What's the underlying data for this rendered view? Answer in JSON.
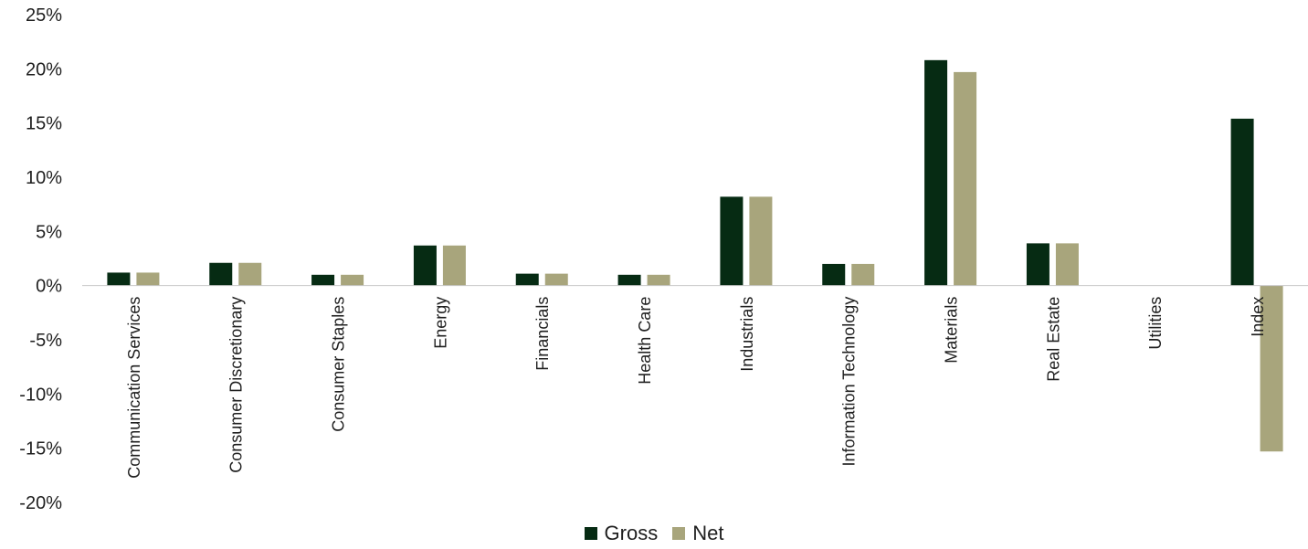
{
  "chart_data": {
    "type": "bar",
    "categories": [
      "Communication Services",
      "Consumer Discretionary",
      "Consumer Staples",
      "Energy",
      "Financials",
      "Health Care",
      "Industrials",
      "Information Technology",
      "Materials",
      "Real Estate",
      "Utilities",
      "Index"
    ],
    "series": [
      {
        "name": "Gross",
        "color": "#062b13",
        "values": [
          1.2,
          2.1,
          1.0,
          3.7,
          1.1,
          1.0,
          8.2,
          2.0,
          20.8,
          3.9,
          0,
          15.4
        ]
      },
      {
        "name": "Net",
        "color": "#a8a57c",
        "values": [
          1.2,
          2.1,
          1.0,
          3.7,
          1.1,
          1.0,
          8.2,
          2.0,
          19.7,
          3.9,
          0,
          -15.3
        ]
      }
    ],
    "title": "",
    "xlabel": "",
    "ylabel": "",
    "ylim": [
      -20,
      25
    ],
    "y_ticks": [
      "25%",
      "20%",
      "15%",
      "10%",
      "5%",
      "0%",
      "-5%",
      "-10%",
      "-15%",
      "-20%"
    ],
    "grid": false,
    "legend_position": "bottom"
  }
}
